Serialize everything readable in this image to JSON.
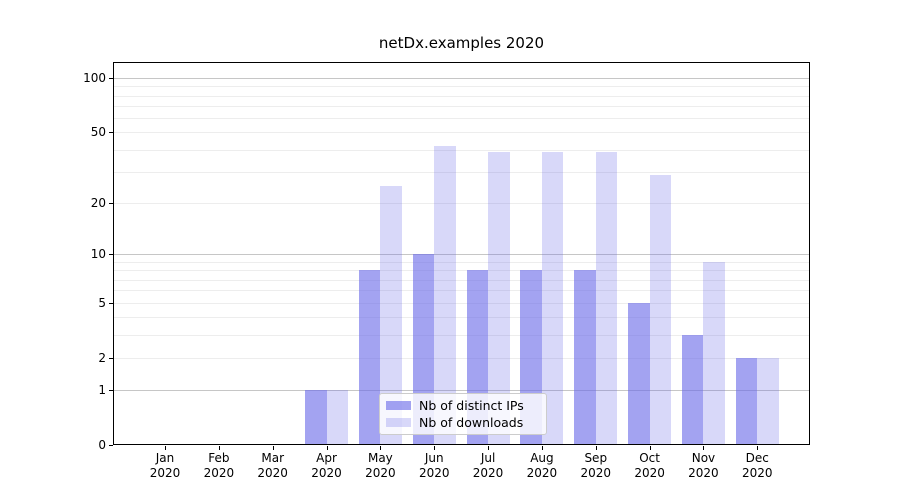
{
  "chart_data": {
    "type": "bar",
    "title": "netDx.examples 2020",
    "categories": [
      {
        "month": "Jan",
        "year": "2020"
      },
      {
        "month": "Feb",
        "year": "2020"
      },
      {
        "month": "Mar",
        "year": "2020"
      },
      {
        "month": "Apr",
        "year": "2020"
      },
      {
        "month": "May",
        "year": "2020"
      },
      {
        "month": "Jun",
        "year": "2020"
      },
      {
        "month": "Jul",
        "year": "2020"
      },
      {
        "month": "Aug",
        "year": "2020"
      },
      {
        "month": "Sep",
        "year": "2020"
      },
      {
        "month": "Oct",
        "year": "2020"
      },
      {
        "month": "Nov",
        "year": "2020"
      },
      {
        "month": "Dec",
        "year": "2020"
      }
    ],
    "series": [
      {
        "name": "Nb of distinct IPs",
        "key": "distinct-ips",
        "color": "#a3a3f0",
        "values": [
          0,
          0,
          0,
          1,
          8,
          10,
          8,
          8,
          8,
          5,
          3,
          2
        ]
      },
      {
        "name": "Nb of downloads",
        "key": "downloads",
        "color": "#d8d8f7",
        "values": [
          0,
          0,
          0,
          1,
          25,
          42,
          39,
          39,
          39,
          29,
          9,
          2
        ]
      }
    ],
    "y_axis": {
      "scale": "log1p",
      "ticks": [
        0,
        1,
        2,
        5,
        10,
        20,
        50,
        100
      ],
      "major_gridlines": [
        1,
        10,
        100
      ],
      "minor_gridlines": [
        2,
        3,
        4,
        5,
        6,
        7,
        8,
        9,
        20,
        30,
        40,
        50,
        60,
        70,
        80,
        90
      ],
      "range": [
        0,
        122
      ],
      "grid": true
    },
    "legend": {
      "position": "lower-center",
      "entries": [
        "Nb of distinct IPs",
        "Nb of downloads"
      ]
    },
    "colors": {
      "bar_dark": "#a3a3f0",
      "bar_light": "#d8d8f7",
      "gridline_major": "#c6c6c6",
      "gridline_minor": "#ededed",
      "axis": "#000000"
    }
  }
}
